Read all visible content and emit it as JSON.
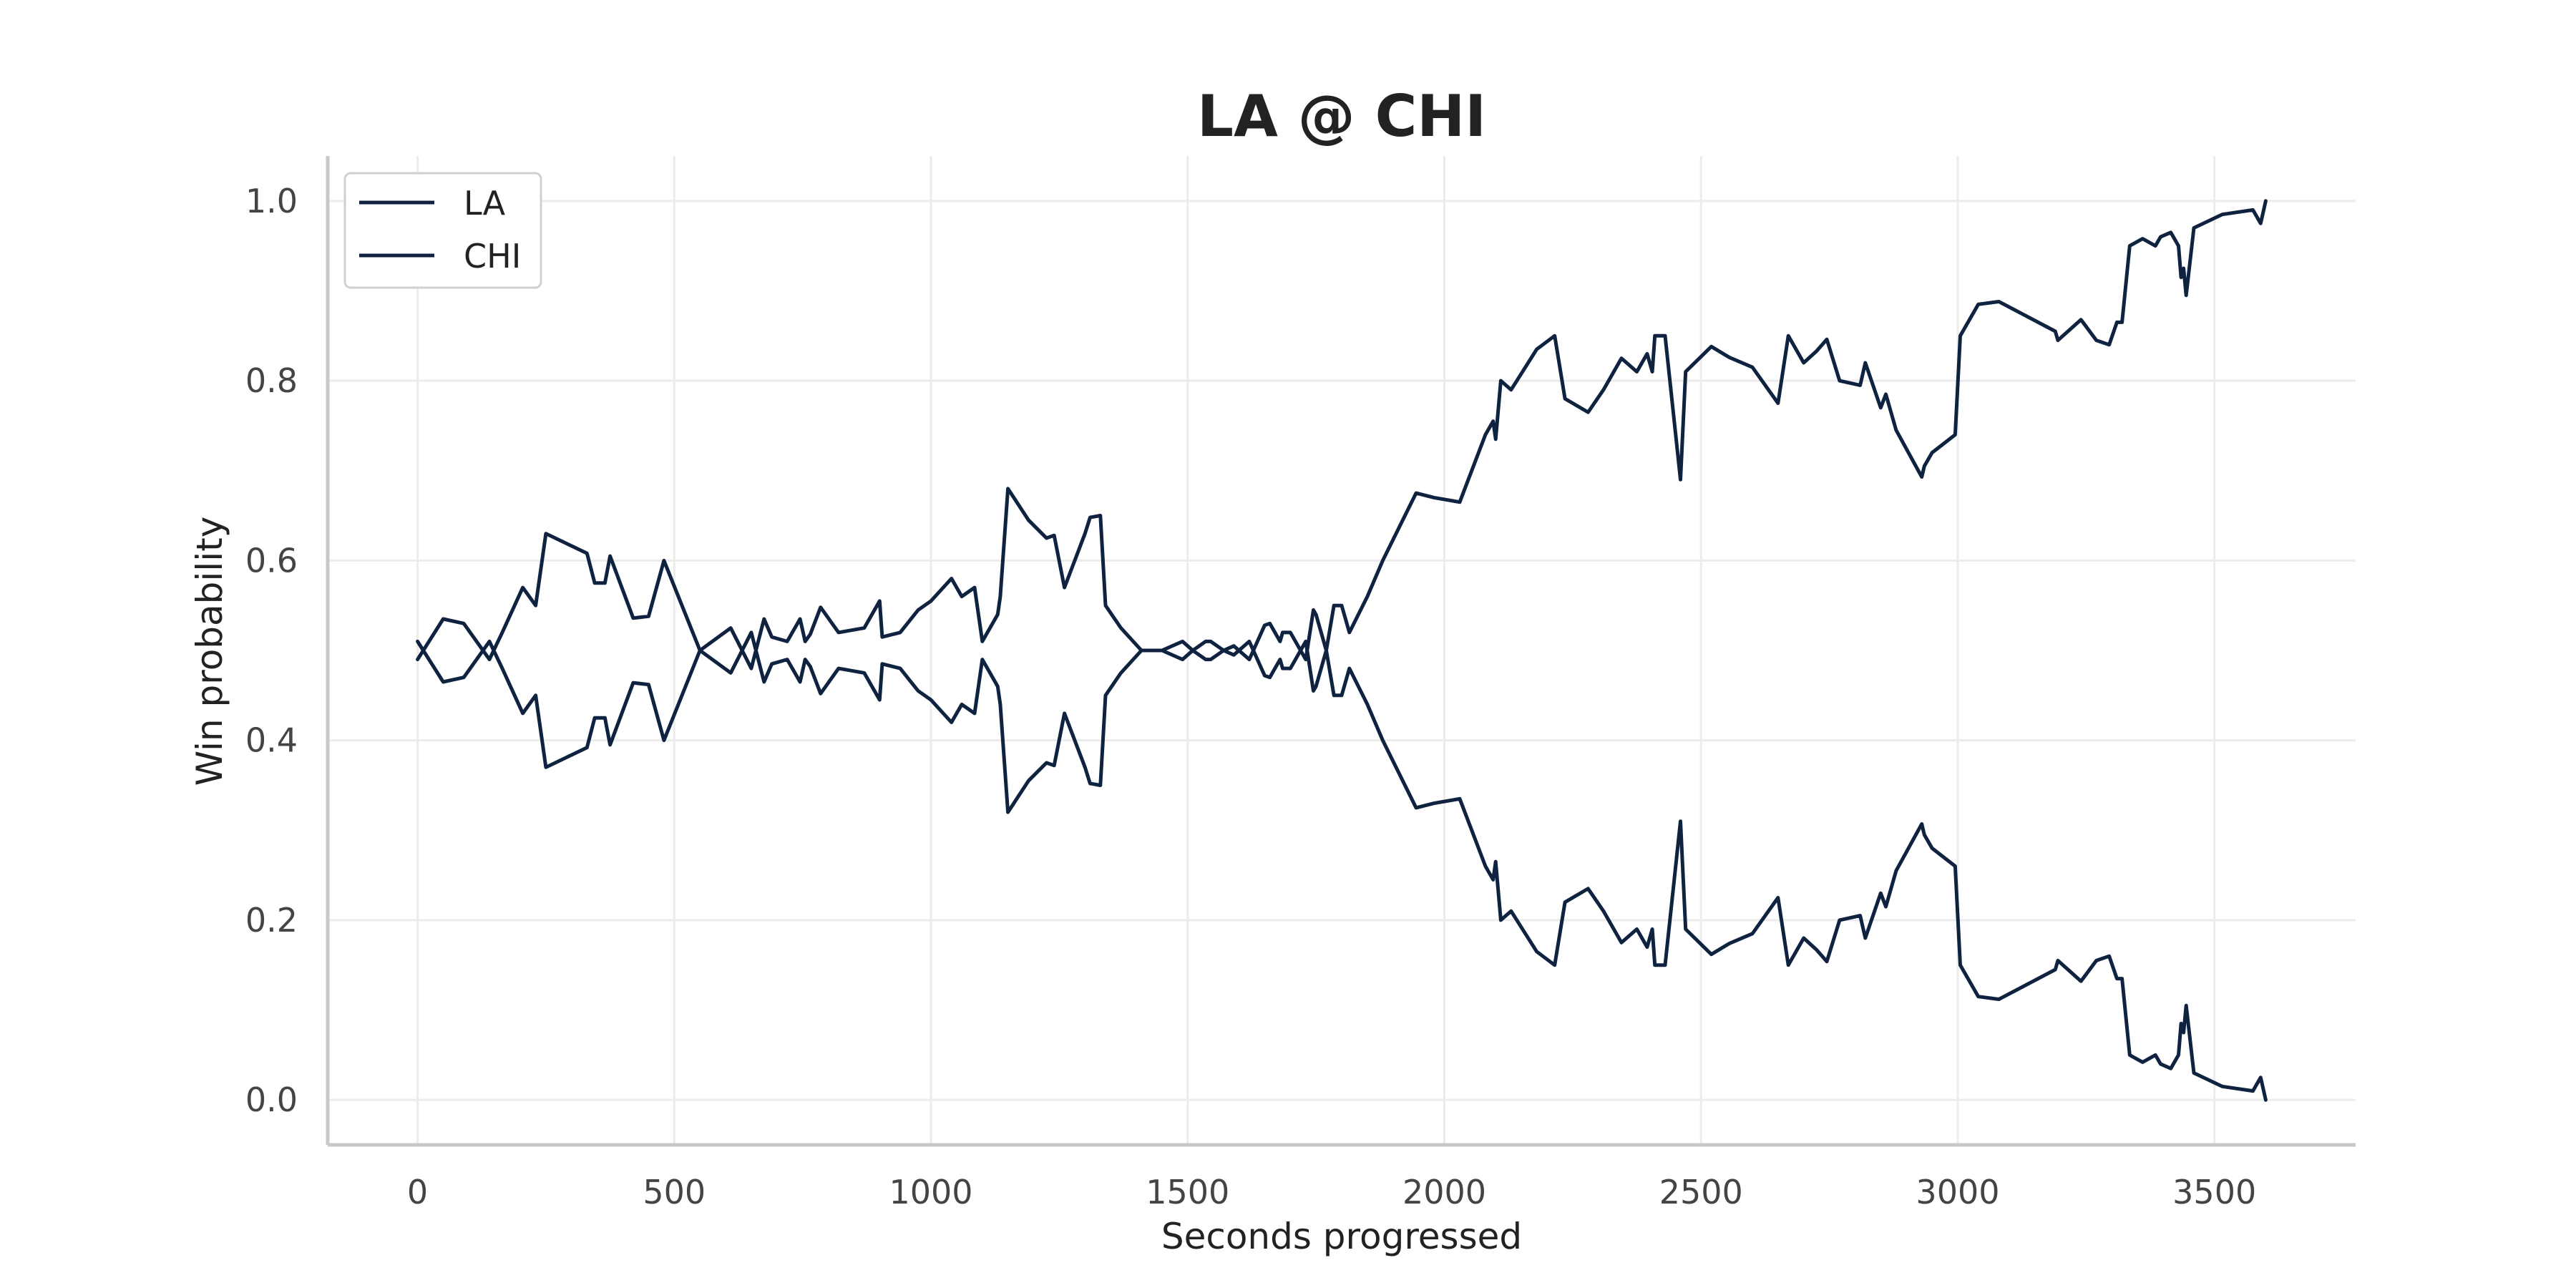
{
  "colors": {
    "series": "#0f2340",
    "grid": "#ececec",
    "axis": "#c8c8c8",
    "background": "#ffffff"
  },
  "chart_data": {
    "type": "line",
    "title": "LA @ CHI",
    "xlabel": "Seconds progressed",
    "ylabel": "Win probability",
    "xlim": [
      -175,
      3775
    ],
    "ylim": [
      -0.05,
      1.05
    ],
    "xticks": [
      0,
      500,
      1000,
      1500,
      2000,
      2500,
      3000,
      3500
    ],
    "xtick_labels": [
      "0",
      "500",
      "1000",
      "1500",
      "2000",
      "2500",
      "3000",
      "3500"
    ],
    "yticks": [
      0.0,
      0.2,
      0.4,
      0.6,
      0.8,
      1.0
    ],
    "ytick_labels": [
      "0.0",
      "0.2",
      "0.4",
      "0.6",
      "0.8",
      "1.0"
    ],
    "grid": true,
    "legend_position": "top-left",
    "x": [
      0,
      50,
      90,
      140,
      165,
      205,
      230,
      250,
      330,
      345,
      365,
      375,
      420,
      450,
      480,
      550,
      610,
      650,
      675,
      690,
      720,
      745,
      755,
      765,
      785,
      820,
      870,
      900,
      905,
      940,
      975,
      1000,
      1040,
      1060,
      1085,
      1100,
      1130,
      1135,
      1150,
      1190,
      1225,
      1240,
      1260,
      1300,
      1310,
      1330,
      1340,
      1370,
      1410,
      1450,
      1490,
      1510,
      1535,
      1545,
      1570,
      1590,
      1620,
      1650,
      1660,
      1680,
      1685,
      1700,
      1730,
      1745,
      1750,
      1770,
      1785,
      1795,
      1800,
      1815,
      1850,
      1880,
      1945,
      1980,
      2030,
      2080,
      2095,
      2100,
      2110,
      2130,
      2180,
      2215,
      2235,
      2280,
      2310,
      2345,
      2375,
      2395,
      2405,
      2410,
      2430,
      2460,
      2470,
      2520,
      2555,
      2600,
      2650,
      2670,
      2700,
      2725,
      2745,
      2770,
      2810,
      2820,
      2850,
      2860,
      2880,
      2930,
      2935,
      2950,
      2995,
      3005,
      3040,
      3080,
      3190,
      3195,
      3240,
      3270,
      3295,
      3310,
      3320,
      3335,
      3360,
      3385,
      3395,
      3415,
      3430,
      3435,
      3440,
      3445,
      3460,
      3515,
      3575,
      3590,
      3600
    ],
    "series": [
      {
        "name": "LA",
        "values": [
          0.49,
          0.535,
          0.53,
          0.49,
          0.52,
          0.57,
          0.55,
          0.63,
          0.608,
          0.575,
          0.575,
          0.605,
          0.536,
          0.538,
          0.6,
          0.5,
          0.525,
          0.48,
          0.535,
          0.515,
          0.51,
          0.535,
          0.51,
          0.518,
          0.548,
          0.52,
          0.525,
          0.555,
          0.515,
          0.52,
          0.545,
          0.555,
          0.58,
          0.56,
          0.57,
          0.51,
          0.54,
          0.56,
          0.68,
          0.645,
          0.625,
          0.628,
          0.57,
          0.63,
          0.648,
          0.65,
          0.55,
          0.525,
          0.5,
          0.5,
          0.51,
          0.5,
          0.51,
          0.51,
          0.5,
          0.505,
          0.49,
          0.528,
          0.53,
          0.51,
          0.52,
          0.52,
          0.49,
          0.545,
          0.54,
          0.5,
          0.55,
          0.55,
          0.55,
          0.52,
          0.56,
          0.6,
          0.675,
          0.67,
          0.665,
          0.74,
          0.755,
          0.735,
          0.8,
          0.79,
          0.835,
          0.85,
          0.78,
          0.765,
          0.79,
          0.825,
          0.81,
          0.83,
          0.81,
          0.85,
          0.85,
          0.69,
          0.81,
          0.838,
          0.826,
          0.815,
          0.775,
          0.85,
          0.82,
          0.833,
          0.846,
          0.8,
          0.795,
          0.82,
          0.77,
          0.785,
          0.745,
          0.693,
          0.705,
          0.72,
          0.74,
          0.85,
          0.885,
          0.888,
          0.855,
          0.845,
          0.868,
          0.845,
          0.84,
          0.865,
          0.865,
          0.95,
          0.958,
          0.95,
          0.96,
          0.965,
          0.95,
          0.915,
          0.925,
          0.895,
          0.97,
          0.985,
          0.99,
          0.975,
          1.0
        ]
      },
      {
        "name": "CHI",
        "values": [
          0.51,
          0.465,
          0.47,
          0.51,
          0.48,
          0.43,
          0.45,
          0.37,
          0.392,
          0.425,
          0.425,
          0.395,
          0.464,
          0.462,
          0.4,
          0.5,
          0.475,
          0.52,
          0.465,
          0.485,
          0.49,
          0.465,
          0.49,
          0.482,
          0.452,
          0.48,
          0.475,
          0.445,
          0.485,
          0.48,
          0.455,
          0.445,
          0.42,
          0.44,
          0.43,
          0.49,
          0.46,
          0.44,
          0.32,
          0.355,
          0.375,
          0.372,
          0.43,
          0.37,
          0.352,
          0.35,
          0.45,
          0.475,
          0.5,
          0.5,
          0.49,
          0.5,
          0.49,
          0.49,
          0.5,
          0.495,
          0.51,
          0.472,
          0.47,
          0.49,
          0.48,
          0.48,
          0.51,
          0.455,
          0.46,
          0.5,
          0.45,
          0.45,
          0.45,
          0.48,
          0.44,
          0.4,
          0.325,
          0.33,
          0.335,
          0.26,
          0.245,
          0.265,
          0.2,
          0.21,
          0.165,
          0.15,
          0.22,
          0.235,
          0.21,
          0.175,
          0.19,
          0.17,
          0.19,
          0.15,
          0.15,
          0.31,
          0.19,
          0.162,
          0.174,
          0.185,
          0.225,
          0.15,
          0.18,
          0.167,
          0.154,
          0.2,
          0.205,
          0.18,
          0.23,
          0.215,
          0.255,
          0.307,
          0.295,
          0.28,
          0.26,
          0.15,
          0.115,
          0.112,
          0.145,
          0.155,
          0.132,
          0.155,
          0.16,
          0.135,
          0.135,
          0.05,
          0.042,
          0.05,
          0.04,
          0.035,
          0.05,
          0.085,
          0.075,
          0.105,
          0.03,
          0.015,
          0.01,
          0.025,
          0.0
        ]
      }
    ]
  }
}
